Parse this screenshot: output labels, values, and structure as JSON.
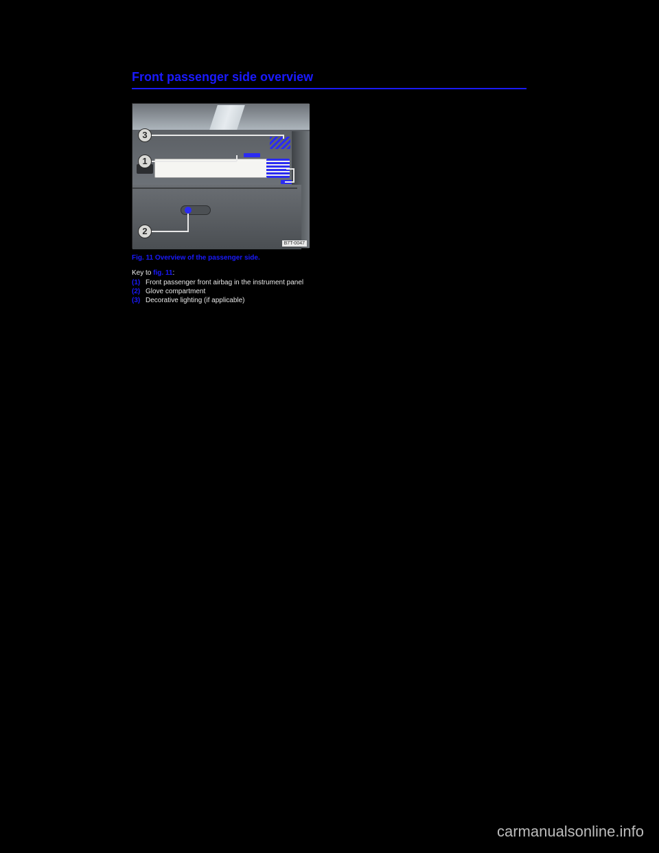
{
  "heading": "Front passenger side overview",
  "figure": {
    "image_code": "B7T-0047",
    "caption": "Fig. 11 Overview of the passenger side.",
    "callouts": {
      "c1": "1",
      "c2": "2",
      "c3": "3"
    }
  },
  "key": {
    "intro_pre": "Key to ",
    "intro_fig": "fig. 11",
    "intro_post": ":",
    "items": [
      {
        "num": "(1)",
        "text": "Front passenger front airbag in the instrument panel"
      },
      {
        "num": "(2)",
        "text": "Glove compartment"
      },
      {
        "num": "(3)",
        "text": "Decorative lighting (if applicable)"
      }
    ]
  },
  "watermark": "carmanualsonline.info",
  "colors": {
    "background": "#000000",
    "accent": "#1a1aff",
    "body_text": "#e8e8e8",
    "watermark_text": "#bcbcbc"
  }
}
